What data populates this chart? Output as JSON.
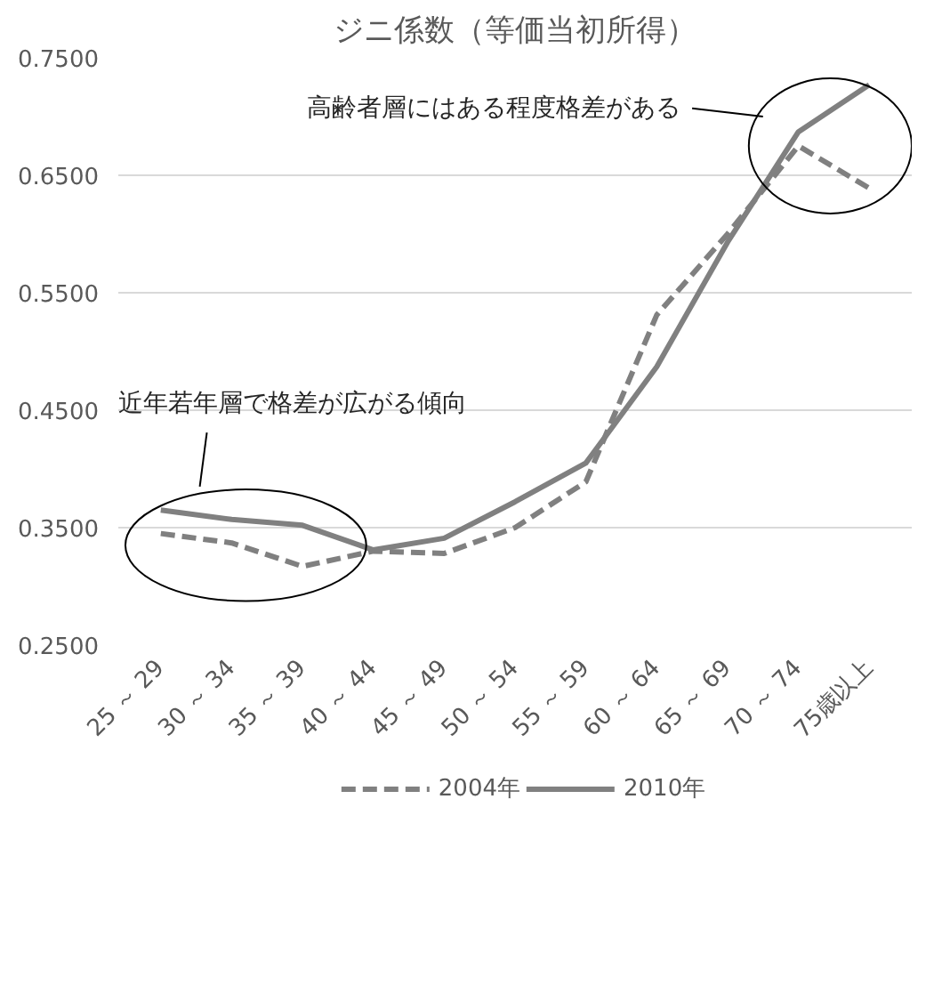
{
  "chart_data": {
    "type": "line",
    "title": "ジニ係数（等価当初所得）",
    "categories": [
      "25 ～ 29",
      "30 ～ 34",
      "35 ～ 39",
      "40 ～ 44",
      "45 ～ 49",
      "50 ～ 54",
      "55 ～ 59",
      "60 ～ 64",
      "65 ～ 69",
      "70 ～ 74",
      "75歳以上"
    ],
    "series": [
      {
        "name": "2004年",
        "color": "#808080",
        "line_style": "dashed",
        "values": [
          0.345,
          0.337,
          0.317,
          0.33,
          0.328,
          0.35,
          0.389,
          0.531,
          0.6,
          0.675,
          0.639
        ]
      },
      {
        "name": "2010年",
        "color": "#808080",
        "line_style": "solid",
        "values": [
          0.365,
          0.357,
          0.352,
          0.331,
          0.341,
          0.372,
          0.405,
          0.487,
          0.593,
          0.687,
          0.727
        ]
      }
    ],
    "ylim": [
      0.25,
      0.75
    ],
    "yticks": [
      {
        "value": 0.25,
        "label": "0.2500"
      },
      {
        "value": 0.35,
        "label": "0.3500"
      },
      {
        "value": 0.45,
        "label": "0.4500"
      },
      {
        "value": 0.55,
        "label": "0.5500"
      },
      {
        "value": 0.65,
        "label": "0.6500"
      },
      {
        "value": 0.75,
        "label": "0.7500"
      }
    ],
    "grid": "y",
    "legend": "bottom",
    "marker": "none",
    "annotations": [
      "近年若年層で格差が広がる傾向",
      "高齢者層にはある程度格差がある"
    ]
  }
}
